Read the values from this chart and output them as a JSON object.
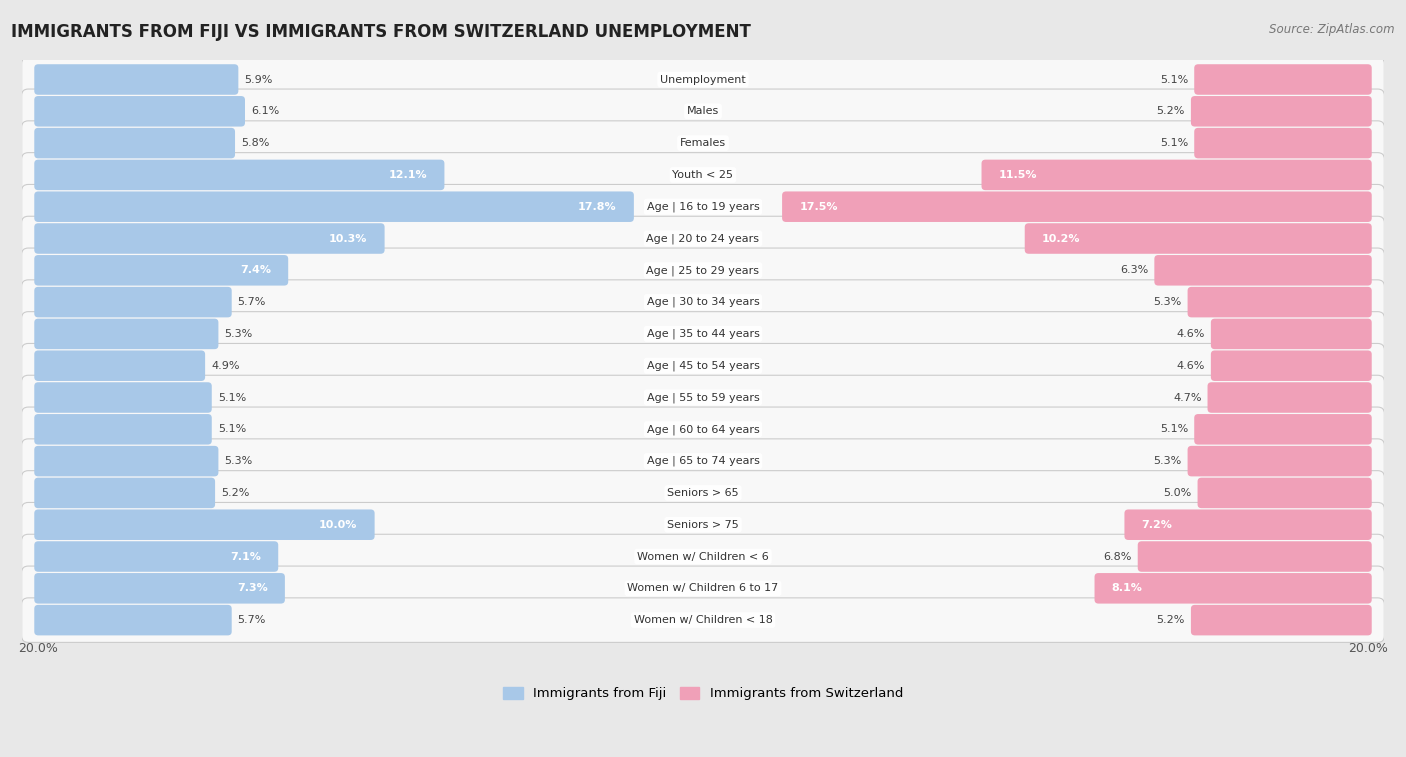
{
  "title": "IMMIGRANTS FROM FIJI VS IMMIGRANTS FROM SWITZERLAND UNEMPLOYMENT",
  "source": "Source: ZipAtlas.com",
  "categories": [
    "Unemployment",
    "Males",
    "Females",
    "Youth < 25",
    "Age | 16 to 19 years",
    "Age | 20 to 24 years",
    "Age | 25 to 29 years",
    "Age | 30 to 34 years",
    "Age | 35 to 44 years",
    "Age | 45 to 54 years",
    "Age | 55 to 59 years",
    "Age | 60 to 64 years",
    "Age | 65 to 74 years",
    "Seniors > 65",
    "Seniors > 75",
    "Women w/ Children < 6",
    "Women w/ Children 6 to 17",
    "Women w/ Children < 18"
  ],
  "fiji_values": [
    5.9,
    6.1,
    5.8,
    12.1,
    17.8,
    10.3,
    7.4,
    5.7,
    5.3,
    4.9,
    5.1,
    5.1,
    5.3,
    5.2,
    10.0,
    7.1,
    7.3,
    5.7
  ],
  "swiss_values": [
    5.1,
    5.2,
    5.1,
    11.5,
    17.5,
    10.2,
    6.3,
    5.3,
    4.6,
    4.6,
    4.7,
    5.1,
    5.3,
    5.0,
    7.2,
    6.8,
    8.1,
    5.2
  ],
  "fiji_color": "#a8c8e8",
  "swiss_color": "#f0a0b8",
  "max_value": 20.0,
  "bg_color": "#e8e8e8",
  "row_bg": "#f8f8f8",
  "row_bg_alt": "#eeeeee",
  "title_fontsize": 12,
  "legend_fiji": "Immigrants from Fiji",
  "legend_swiss": "Immigrants from Switzerland"
}
